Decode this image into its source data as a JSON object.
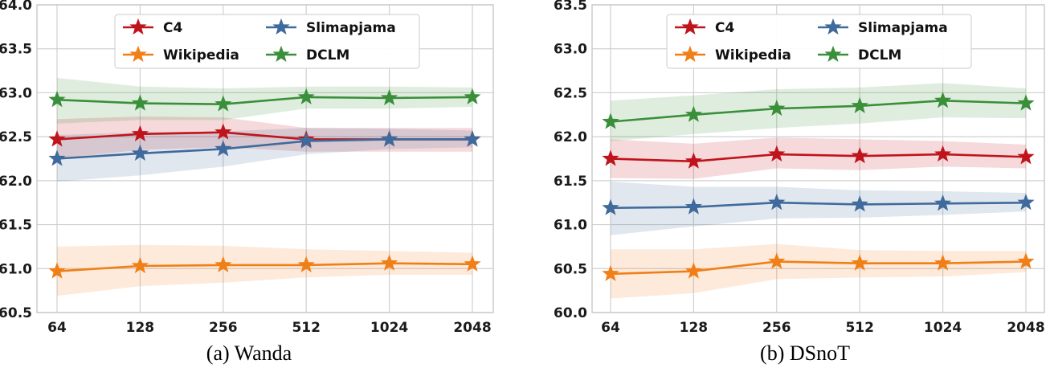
{
  "chart_data": [
    {
      "type": "line",
      "title": "",
      "caption": "(a)  Wanda",
      "xlabel": "",
      "ylabel": "",
      "categories": [
        "64",
        "128",
        "256",
        "512",
        "1024",
        "2048"
      ],
      "ylim": [
        60.5,
        64.0
      ],
      "yticks": [
        "60.5",
        "61.0",
        "61.5",
        "62.0",
        "62.5",
        "63.0",
        "63.5",
        "64.0"
      ],
      "grid": true,
      "legend": "top-center",
      "series": [
        {
          "name": "C4",
          "color": "#c0141c",
          "values": [
            62.47,
            62.53,
            62.55,
            62.47,
            62.47,
            62.47
          ],
          "lower": [
            62.25,
            62.35,
            62.38,
            62.33,
            62.33,
            62.33
          ],
          "upper": [
            62.7,
            62.73,
            62.72,
            62.6,
            62.6,
            62.6
          ]
        },
        {
          "name": "Wikipedia",
          "color": "#f07f17",
          "values": [
            60.97,
            61.03,
            61.04,
            61.04,
            61.06,
            61.05
          ],
          "lower": [
            60.69,
            60.8,
            60.84,
            60.9,
            60.93,
            60.93
          ],
          "upper": [
            61.25,
            61.27,
            61.26,
            61.22,
            61.2,
            61.18
          ]
        },
        {
          "name": "Slimapjama",
          "color": "#3f6a9b",
          "values": [
            62.25,
            62.31,
            62.36,
            62.45,
            62.47,
            62.47
          ],
          "lower": [
            61.99,
            62.06,
            62.16,
            62.3,
            62.36,
            62.38
          ],
          "upper": [
            62.52,
            62.55,
            62.56,
            62.6,
            62.59,
            62.57
          ]
        },
        {
          "name": "DCLM",
          "color": "#3a8f3a",
          "values": [
            62.92,
            62.88,
            62.87,
            62.95,
            62.94,
            62.95
          ],
          "lower": [
            62.65,
            62.69,
            62.69,
            62.82,
            62.82,
            62.84
          ],
          "upper": [
            63.17,
            63.07,
            63.05,
            63.07,
            63.07,
            63.06
          ]
        }
      ]
    },
    {
      "type": "line",
      "title": "",
      "caption": "(b)  DSnoT",
      "xlabel": "",
      "ylabel": "",
      "categories": [
        "64",
        "128",
        "256",
        "512",
        "1024",
        "2048"
      ],
      "ylim": [
        60.0,
        63.5
      ],
      "yticks": [
        "60.0",
        "60.5",
        "61.0",
        "61.5",
        "62.0",
        "62.5",
        "63.0",
        "63.5"
      ],
      "grid": true,
      "legend": "top-center",
      "series": [
        {
          "name": "C4",
          "color": "#c0141c",
          "values": [
            61.75,
            61.72,
            61.8,
            61.78,
            61.8,
            61.77
          ],
          "lower": [
            61.53,
            61.52,
            61.64,
            61.62,
            61.66,
            61.64
          ],
          "upper": [
            61.97,
            61.92,
            61.99,
            61.97,
            61.95,
            61.91
          ]
        },
        {
          "name": "Wikipedia",
          "color": "#f07f17",
          "values": [
            60.44,
            60.47,
            60.58,
            60.56,
            60.56,
            60.58
          ],
          "lower": [
            60.16,
            60.22,
            60.38,
            60.4,
            60.41,
            60.46
          ],
          "upper": [
            60.72,
            60.72,
            60.78,
            60.71,
            60.7,
            60.7
          ]
        },
        {
          "name": "Slimapjama",
          "color": "#3f6a9b",
          "values": [
            61.19,
            61.2,
            61.25,
            61.23,
            61.24,
            61.25
          ],
          "lower": [
            60.88,
            60.98,
            61.07,
            61.08,
            61.11,
            61.15
          ],
          "upper": [
            61.49,
            61.43,
            61.43,
            61.39,
            61.38,
            61.36
          ]
        },
        {
          "name": "DCLM",
          "color": "#3a8f3a",
          "values": [
            62.17,
            62.25,
            62.32,
            62.35,
            62.41,
            62.38
          ],
          "lower": [
            61.95,
            62.03,
            62.1,
            62.15,
            62.22,
            62.21
          ],
          "upper": [
            62.41,
            62.47,
            62.54,
            62.56,
            62.61,
            62.55
          ]
        }
      ]
    }
  ]
}
